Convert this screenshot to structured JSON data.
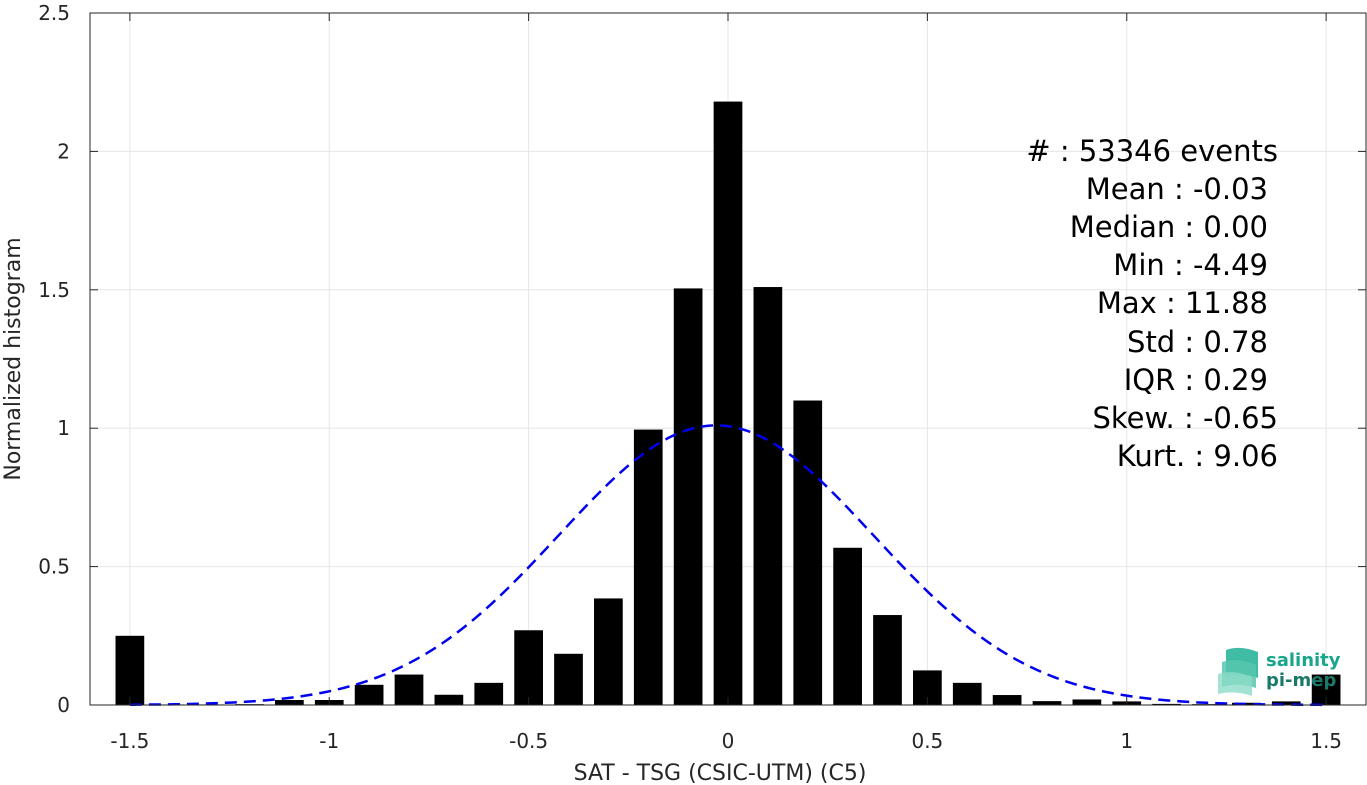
{
  "chart_data": {
    "type": "bar",
    "xlabel": "SAT - TSG (CSIC-UTM) (C5)",
    "ylabel": "Normalized histogram",
    "xlim": [
      -1.6,
      1.6
    ],
    "ylim": [
      0,
      2.5
    ],
    "grid": true,
    "x_ticks": [
      "-1.5",
      "-1",
      "-0.5",
      "0",
      "0.5",
      "1",
      "1.5"
    ],
    "x_tick_values": [
      -1.5,
      -1,
      -0.5,
      0,
      0.5,
      1,
      1.5
    ],
    "y_ticks": [
      "0",
      "0.5",
      "1",
      "1.5",
      "2",
      "2.5"
    ],
    "y_tick_values": [
      0,
      0.5,
      1,
      1.5,
      2,
      2.5
    ],
    "bin_width": 0.1,
    "bar_color": "#000000",
    "bars": {
      "x": [
        -1.5,
        -1.4,
        -1.3,
        -1.2,
        -1.1,
        -1.0,
        -0.9,
        -0.8,
        -0.7,
        -0.6,
        -0.5,
        -0.4,
        -0.3,
        -0.2,
        -0.1,
        0.0,
        0.1,
        0.2,
        0.3,
        0.4,
        0.5,
        0.6,
        0.7,
        0.8,
        0.9,
        1.0,
        1.1,
        1.2,
        1.3,
        1.4,
        1.5
      ],
      "values": [
        0.25,
        0.002,
        0.002,
        0.003,
        0.018,
        0.018,
        0.073,
        0.11,
        0.037,
        0.08,
        0.27,
        0.185,
        0.385,
        0.995,
        1.505,
        2.18,
        1.51,
        1.1,
        0.568,
        0.325,
        0.125,
        0.08,
        0.036,
        0.014,
        0.02,
        0.013,
        0.004,
        0.003,
        0.008,
        0.013,
        0.11
      ]
    },
    "fit_curve": {
      "type": "gaussian",
      "mean": -0.03,
      "std": 0.395,
      "peak": 1.01,
      "color": "#0000ee",
      "style": "dashed"
    },
    "annotations": [
      "#  : 53346 events",
      "Mean : -0.03",
      "Median : 0.00",
      "Min : -4.49",
      "Max : 11.88",
      "Std : 0.78",
      "IQR : 0.29",
      "Skew. : -0.65",
      "Kurt. : 9.06"
    ],
    "logo": {
      "line1": "salinity",
      "line2": "pi-mep",
      "color": "#1aa68c"
    }
  }
}
